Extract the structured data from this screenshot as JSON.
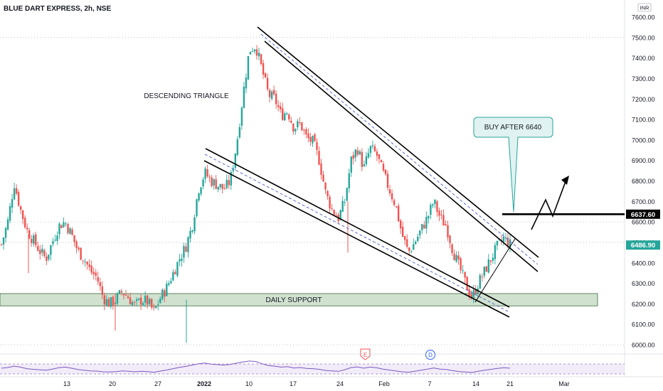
{
  "header": {
    "symbol_title": "BLUE DART EXPRESS, 2h, NSE"
  },
  "currency": "INR",
  "colors": {
    "up": "#26a69a",
    "down": "#ef5350",
    "support_fill": "#c8dcc8",
    "callout_fill": "#e0f2f1",
    "callout_stroke": "#26a69a",
    "last_price_bg": "#26a69a",
    "line": "#000000",
    "channel_dash": "#5b6bd6"
  },
  "annotations": {
    "pattern_label": "DESCENDING TRIANGLE",
    "support_label": "DAILY SUPPORT",
    "callout_text": "BUY AFTER 6640",
    "buy_level_label": "6637.60",
    "last_price_label": "6486.90"
  },
  "event_markers": {
    "earnings": "E",
    "dividend": "D"
  },
  "chart_data": {
    "type": "candlestick",
    "title": "BLUE DART EXPRESS, 2h, NSE",
    "x_tick_labels": [
      "13",
      "20",
      "27",
      "2022",
      "10",
      "17",
      "24",
      "Feb",
      "7",
      "14",
      "21",
      "Mar"
    ],
    "y_tick_labels": [
      "7600.00",
      "7500.00",
      "7400.00",
      "7300.00",
      "7200.00",
      "7100.00",
      "7000.00",
      "6900.00",
      "6800.00",
      "6700.00",
      "6600.00",
      "6500.00",
      "6400.00",
      "6300.00",
      "6200.00",
      "6100.00",
      "6000.00"
    ],
    "ylim": [
      6000,
      7600
    ],
    "grid": false,
    "buy_level": 6637.6,
    "last_price": 6486.9,
    "support_zone": [
      6190,
      6250
    ],
    "anchors": [
      {
        "t": 0,
        "v": 6490
      },
      {
        "t": 1,
        "v": 6600
      },
      {
        "t": 2,
        "v": 6790
      },
      {
        "t": 3,
        "v": 6660
      },
      {
        "t": 4,
        "v": 6560
      },
      {
        "t": 5,
        "v": 6510
      },
      {
        "t": 6,
        "v": 6460
      },
      {
        "t": 7,
        "v": 6420
      },
      {
        "t": 8,
        "v": 6500
      },
      {
        "t": 9,
        "v": 6580
      },
      {
        "t": 10,
        "v": 6600
      },
      {
        "t": 11,
        "v": 6540
      },
      {
        "t": 12,
        "v": 6460
      },
      {
        "t": 13,
        "v": 6420
      },
      {
        "t": 14,
        "v": 6360
      },
      {
        "t": 15,
        "v": 6330
      },
      {
        "t": 16,
        "v": 6230
      },
      {
        "t": 17,
        "v": 6200
      },
      {
        "t": 18,
        "v": 6220
      },
      {
        "t": 19,
        "v": 6260
      },
      {
        "t": 20,
        "v": 6230
      },
      {
        "t": 21,
        "v": 6190
      },
      {
        "t": 22,
        "v": 6220
      },
      {
        "t": 23,
        "v": 6210
      },
      {
        "t": 24,
        "v": 6160
      },
      {
        "t": 25,
        "v": 6230
      },
      {
        "t": 26,
        "v": 6280
      },
      {
        "t": 27,
        "v": 6350
      },
      {
        "t": 28,
        "v": 6420
      },
      {
        "t": 29,
        "v": 6480
      },
      {
        "t": 30,
        "v": 6580
      },
      {
        "t": 31,
        "v": 6760
      },
      {
        "t": 32,
        "v": 6840
      },
      {
        "t": 33,
        "v": 6800
      },
      {
        "t": 34,
        "v": 6780
      },
      {
        "t": 35,
        "v": 6760
      },
      {
        "t": 36,
        "v": 6800
      },
      {
        "t": 37,
        "v": 6980
      },
      {
        "t": 38,
        "v": 7220
      },
      {
        "t": 39,
        "v": 7440
      },
      {
        "t": 40,
        "v": 7460
      },
      {
        "t": 41,
        "v": 7340
      },
      {
        "t": 42,
        "v": 7220
      },
      {
        "t": 43,
        "v": 7200
      },
      {
        "t": 44,
        "v": 7120
      },
      {
        "t": 45,
        "v": 7140
      },
      {
        "t": 46,
        "v": 7060
      },
      {
        "t": 47,
        "v": 7080
      },
      {
        "t": 48,
        "v": 7010
      },
      {
        "t": 49,
        "v": 6990
      },
      {
        "t": 50,
        "v": 6900
      },
      {
        "t": 51,
        "v": 6740
      },
      {
        "t": 52,
        "v": 6660
      },
      {
        "t": 53,
        "v": 6620
      },
      {
        "t": 54,
        "v": 6700
      },
      {
        "t": 55,
        "v": 6900
      },
      {
        "t": 56,
        "v": 6960
      },
      {
        "t": 57,
        "v": 6860
      },
      {
        "t": 58,
        "v": 6960
      },
      {
        "t": 59,
        "v": 6930
      },
      {
        "t": 60,
        "v": 6840
      },
      {
        "t": 61,
        "v": 6760
      },
      {
        "t": 62,
        "v": 6680
      },
      {
        "t": 63,
        "v": 6540
      },
      {
        "t": 64,
        "v": 6450
      },
      {
        "t": 65,
        "v": 6500
      },
      {
        "t": 66,
        "v": 6560
      },
      {
        "t": 67,
        "v": 6620
      },
      {
        "t": 68,
        "v": 6700
      },
      {
        "t": 69,
        "v": 6620
      },
      {
        "t": 70,
        "v": 6580
      },
      {
        "t": 71,
        "v": 6460
      },
      {
        "t": 72,
        "v": 6380
      },
      {
        "t": 73,
        "v": 6300
      },
      {
        "t": 74,
        "v": 6230
      },
      {
        "t": 75,
        "v": 6300
      },
      {
        "t": 76,
        "v": 6360
      },
      {
        "t": 77,
        "v": 6420
      },
      {
        "t": 78,
        "v": 6480
      },
      {
        "t": 79,
        "v": 6520
      },
      {
        "t": 80,
        "v": 6490
      }
    ],
    "rsi": [
      52,
      55,
      61,
      57,
      50,
      47,
      45,
      43,
      48,
      54,
      57,
      52,
      46,
      43,
      40,
      39,
      36,
      35,
      37,
      40,
      38,
      36,
      38,
      37,
      34,
      39,
      44,
      50,
      56,
      60,
      66,
      72,
      75,
      70,
      68,
      66,
      69,
      75,
      80,
      84,
      82,
      72,
      64,
      61,
      57,
      59,
      53,
      55,
      51,
      50,
      47,
      42,
      40,
      38,
      45,
      55,
      58,
      52,
      57,
      54,
      48,
      44,
      40,
      36,
      34,
      38,
      43,
      48,
      53,
      48,
      46,
      41,
      37,
      35,
      33,
      38,
      43,
      47,
      51,
      54,
      52
    ]
  }
}
